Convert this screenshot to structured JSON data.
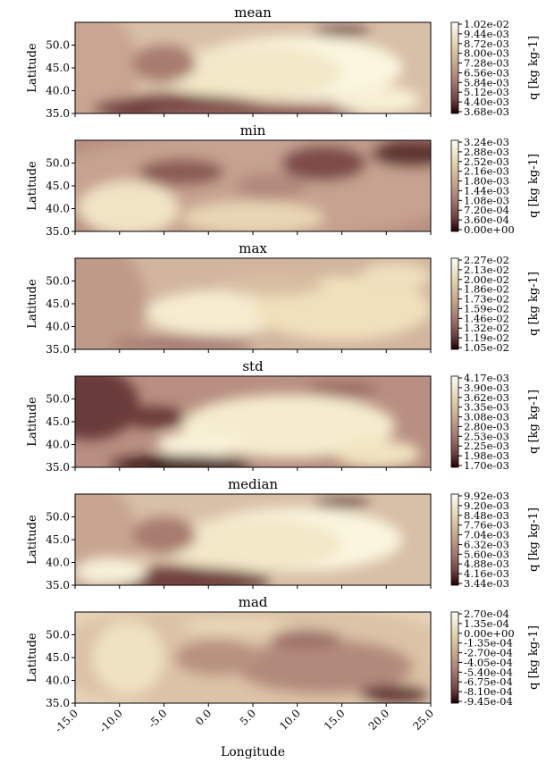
{
  "figure": {
    "xlabel": "Longitude",
    "ylabel": "Latitude",
    "colorbar_label": "q [kg kg-1]"
  },
  "chart_data": [
    {
      "type": "heatmap",
      "title": "mean",
      "xlabel": "Longitude",
      "ylabel": "Latitude",
      "x_ticks": [
        "-15.0",
        "-10.0",
        "-5.0",
        "0.0",
        "5.0",
        "10.0",
        "15.0",
        "20.0",
        "25.0"
      ],
      "y_ticks": [
        "35.0",
        "40.0",
        "45.0",
        "50.0"
      ],
      "xlim": [
        -15,
        25
      ],
      "ylim": [
        35,
        55
      ],
      "colorbar_label": "q [kg kg-1]",
      "colorbar_ticks": [
        "1.02e-02",
        "9.44e-03",
        "8.72e-03",
        "8.00e-03",
        "7.28e-03",
        "6.56e-03",
        "5.84e-03",
        "5.12e-03",
        "4.40e-03",
        "3.68e-03"
      ],
      "colormap": "pink"
    },
    {
      "type": "heatmap",
      "title": "min",
      "xlabel": "Longitude",
      "ylabel": "Latitude",
      "x_ticks": [
        "-15.0",
        "-10.0",
        "-5.0",
        "0.0",
        "5.0",
        "10.0",
        "15.0",
        "20.0",
        "25.0"
      ],
      "y_ticks": [
        "35.0",
        "40.0",
        "45.0",
        "50.0"
      ],
      "xlim": [
        -15,
        25
      ],
      "ylim": [
        35,
        55
      ],
      "colorbar_label": "q [kg kg-1]",
      "colorbar_ticks": [
        "3.24e-03",
        "2.88e-03",
        "2.52e-03",
        "2.16e-03",
        "1.80e-03",
        "1.44e-03",
        "1.08e-03",
        "7.20e-04",
        "3.60e-04",
        "0.00e+00"
      ],
      "colormap": "pink"
    },
    {
      "type": "heatmap",
      "title": "max",
      "xlabel": "Longitude",
      "ylabel": "Latitude",
      "x_ticks": [
        "-15.0",
        "-10.0",
        "-5.0",
        "0.0",
        "5.0",
        "10.0",
        "15.0",
        "20.0",
        "25.0"
      ],
      "y_ticks": [
        "35.0",
        "40.0",
        "45.0",
        "50.0"
      ],
      "xlim": [
        -15,
        25
      ],
      "ylim": [
        35,
        55
      ],
      "colorbar_label": "q [kg kg-1]",
      "colorbar_ticks": [
        "2.27e-02",
        "2.13e-02",
        "2.00e-02",
        "1.86e-02",
        "1.73e-02",
        "1.59e-02",
        "1.46e-02",
        "1.32e-02",
        "1.19e-02",
        "1.05e-02"
      ],
      "colormap": "pink"
    },
    {
      "type": "heatmap",
      "title": "std",
      "xlabel": "Longitude",
      "ylabel": "Latitude",
      "x_ticks": [
        "-15.0",
        "-10.0",
        "-5.0",
        "0.0",
        "5.0",
        "10.0",
        "15.0",
        "20.0",
        "25.0"
      ],
      "y_ticks": [
        "35.0",
        "40.0",
        "45.0",
        "50.0"
      ],
      "xlim": [
        -15,
        25
      ],
      "ylim": [
        35,
        55
      ],
      "colorbar_label": "q [kg kg-1]",
      "colorbar_ticks": [
        "4.17e-03",
        "3.90e-03",
        "3.62e-03",
        "3.35e-03",
        "3.08e-03",
        "2.80e-03",
        "2.53e-03",
        "2.25e-03",
        "1.98e-03",
        "1.70e-03"
      ],
      "colormap": "pink"
    },
    {
      "type": "heatmap",
      "title": "median",
      "xlabel": "Longitude",
      "ylabel": "Latitude",
      "x_ticks": [
        "-15.0",
        "-10.0",
        "-5.0",
        "0.0",
        "5.0",
        "10.0",
        "15.0",
        "20.0",
        "25.0"
      ],
      "y_ticks": [
        "35.0",
        "40.0",
        "45.0",
        "50.0"
      ],
      "xlim": [
        -15,
        25
      ],
      "ylim": [
        35,
        55
      ],
      "colorbar_label": "q [kg kg-1]",
      "colorbar_ticks": [
        "9.92e-03",
        "9.20e-03",
        "8.48e-03",
        "7.76e-03",
        "7.04e-03",
        "6.32e-03",
        "5.60e-03",
        "4.88e-03",
        "4.16e-03",
        "3.44e-03"
      ],
      "colormap": "pink"
    },
    {
      "type": "heatmap",
      "title": "mad",
      "xlabel": "Longitude",
      "ylabel": "Latitude",
      "x_ticks": [
        "-15.0",
        "-10.0",
        "-5.0",
        "0.0",
        "5.0",
        "10.0",
        "15.0",
        "20.0",
        "25.0"
      ],
      "y_ticks": [
        "35.0",
        "40.0",
        "45.0",
        "50.0"
      ],
      "xlim": [
        -15,
        25
      ],
      "ylim": [
        35,
        55
      ],
      "colorbar_label": "q [kg kg-1]",
      "colorbar_ticks": [
        "2.70e-04",
        "1.35e-04",
        "0.00e+00",
        "-1.35e-04",
        "-2.70e-04",
        "-4.05e-04",
        "-5.40e-04",
        "-6.75e-04",
        "-8.10e-04",
        "-9.45e-04"
      ],
      "colormap": "pink"
    }
  ]
}
